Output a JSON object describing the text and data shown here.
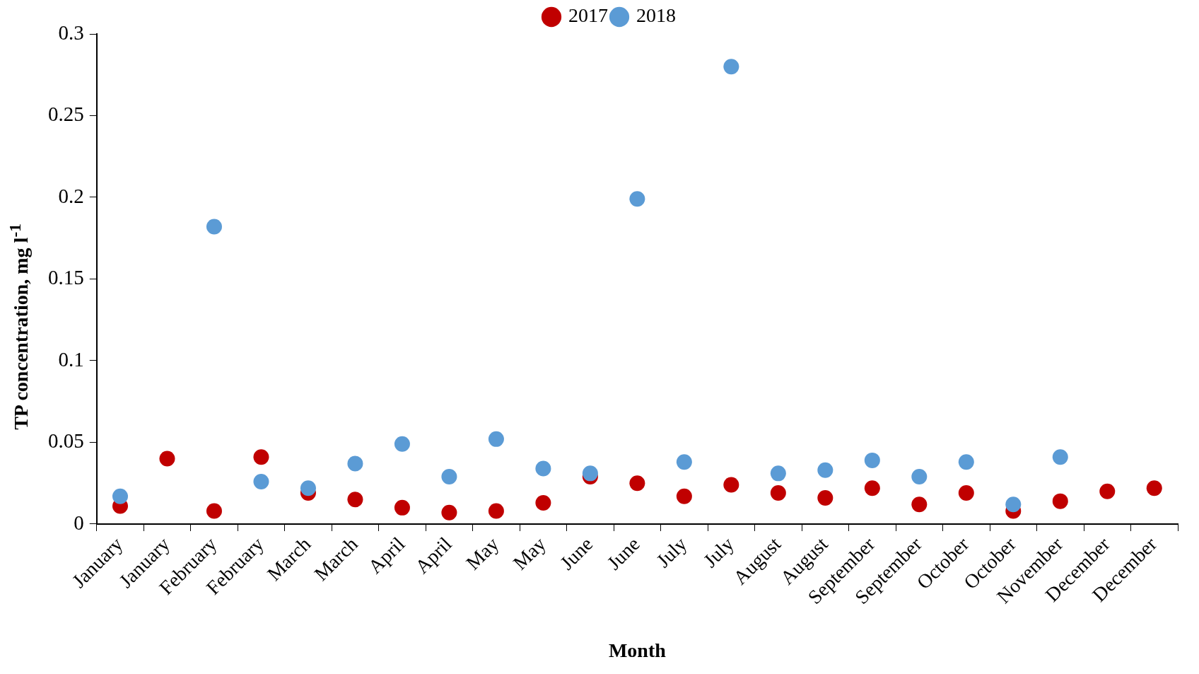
{
  "chart_data": {
    "type": "scatter",
    "xlabel": "Month",
    "ylabel": "TP concentration, mg l$^{-1}$",
    "categories": [
      "January",
      "January",
      "February",
      "February",
      "March",
      "March",
      "April",
      "April",
      "May",
      "May",
      "June",
      "June",
      "July",
      "July",
      "August",
      "August",
      "September",
      "September",
      "October",
      "October",
      "November",
      "December",
      "December"
    ],
    "series": [
      {
        "name": "2017",
        "color": "#c00000",
        "values": [
          0.011,
          0.04,
          0.008,
          0.041,
          0.019,
          0.015,
          0.01,
          0.007,
          0.008,
          0.013,
          0.029,
          0.025,
          0.017,
          0.024,
          0.019,
          0.016,
          0.022,
          0.012,
          0.019,
          0.008,
          0.014,
          0.02,
          0.022
        ]
      },
      {
        "name": "2018",
        "color": "#5b9bd5",
        "values": [
          0.017,
          null,
          0.182,
          0.026,
          0.022,
          0.037,
          0.049,
          0.029,
          0.052,
          0.034,
          0.031,
          0.199,
          0.038,
          0.28,
          0.031,
          0.033,
          0.039,
          0.029,
          0.038,
          0.012,
          0.041,
          null,
          null
        ]
      }
    ],
    "ylim": [
      0,
      0.3
    ],
    "yticks": [
      0,
      0.05,
      0.1,
      0.15,
      0.2,
      0.25,
      0.3
    ],
    "grid": false,
    "legend": "top",
    "marker": "circle"
  }
}
